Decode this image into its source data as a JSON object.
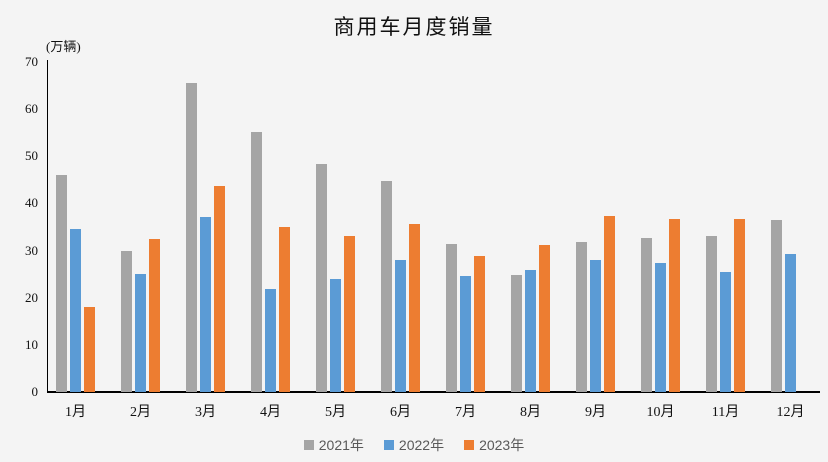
{
  "colors": {
    "background": "#f4f4f4",
    "axis": "#000000",
    "legend_text": "#595959",
    "series_2021": "#A5A5A5",
    "series_2022": "#5B9BD5",
    "series_2023": "#ED7D31"
  },
  "chart_data": {
    "type": "bar",
    "title": "商用车月度销量",
    "ylabel": "(万辆)",
    "xlabel": "",
    "categories": [
      "1月",
      "2月",
      "3月",
      "4月",
      "5月",
      "6月",
      "7月",
      "8月",
      "9月",
      "10月",
      "11月",
      "12月"
    ],
    "series": [
      {
        "name": "2021年",
        "color": "#A5A5A5",
        "values": [
          46.0,
          29.9,
          65.5,
          55.1,
          48.3,
          44.7,
          31.3,
          24.8,
          31.8,
          32.6,
          33.0,
          36.5
        ]
      },
      {
        "name": "2022年",
        "color": "#5B9BD5",
        "values": [
          34.5,
          25.0,
          37.1,
          21.8,
          24.0,
          28.1,
          24.6,
          25.9,
          28.0,
          27.3,
          25.5,
          29.2
        ]
      },
      {
        "name": "2023年",
        "color": "#ED7D31",
        "values": [
          18.1,
          32.4,
          43.7,
          35.0,
          33.1,
          35.6,
          28.9,
          31.1,
          37.3,
          36.6,
          36.6,
          null
        ]
      }
    ],
    "ylim": [
      0,
      70
    ],
    "yticks": [
      0,
      10,
      20,
      30,
      40,
      50,
      60,
      70
    ],
    "grid": false,
    "legend_position": "bottom"
  }
}
